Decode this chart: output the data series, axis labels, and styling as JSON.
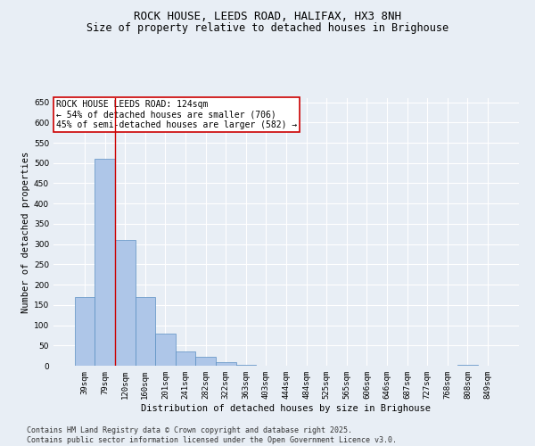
{
  "title": "ROCK HOUSE, LEEDS ROAD, HALIFAX, HX3 8NH",
  "subtitle": "Size of property relative to detached houses in Brighouse",
  "xlabel": "Distribution of detached houses by size in Brighouse",
  "ylabel": "Number of detached properties",
  "categories": [
    "39sqm",
    "79sqm",
    "120sqm",
    "160sqm",
    "201sqm",
    "241sqm",
    "282sqm",
    "322sqm",
    "363sqm",
    "403sqm",
    "444sqm",
    "484sqm",
    "525sqm",
    "565sqm",
    "606sqm",
    "646sqm",
    "687sqm",
    "727sqm",
    "768sqm",
    "808sqm",
    "849sqm"
  ],
  "values": [
    170,
    510,
    310,
    170,
    80,
    35,
    22,
    8,
    2,
    0,
    0,
    0,
    0,
    0,
    0,
    0,
    0,
    0,
    0,
    3,
    0
  ],
  "bar_color": "#aec6e8",
  "bar_edge_color": "#5a8fc2",
  "background_color": "#e8eef5",
  "grid_color": "#ffffff",
  "vline_index": 2,
  "vline_color": "#cc0000",
  "annotation_box_text": "ROCK HOUSE LEEDS ROAD: 124sqm\n← 54% of detached houses are smaller (706)\n45% of semi-detached houses are larger (582) →",
  "annotation_box_color": "#cc0000",
  "annotation_box_bg": "#ffffff",
  "ylim": [
    0,
    660
  ],
  "yticks": [
    0,
    50,
    100,
    150,
    200,
    250,
    300,
    350,
    400,
    450,
    500,
    550,
    600,
    650
  ],
  "footer": "Contains HM Land Registry data © Crown copyright and database right 2025.\nContains public sector information licensed under the Open Government Licence v3.0.",
  "title_fontsize": 9,
  "subtitle_fontsize": 8.5,
  "axis_label_fontsize": 7.5,
  "tick_fontsize": 6.5,
  "annotation_fontsize": 7,
  "footer_fontsize": 6
}
